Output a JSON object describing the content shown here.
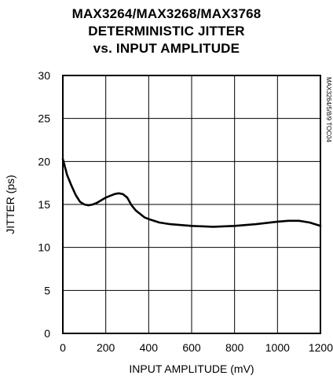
{
  "chart_data": {
    "type": "line",
    "title": [
      "MAX3264/MAX3268/MAX3768",
      "DETERMINISTIC JITTER",
      "vs. INPUT AMPLITUDE"
    ],
    "xlabel": "INPUT AMPLITUDE (mV)",
    "ylabel": "JITTER (ps)",
    "xlim": [
      0,
      1200
    ],
    "ylim": [
      0,
      30
    ],
    "xticks": [
      0,
      200,
      400,
      600,
      800,
      1000,
      1200
    ],
    "yticks": [
      0,
      5,
      10,
      15,
      20,
      25,
      30
    ],
    "grid": true,
    "side_label": "MAX3264/5/8/9 TOC04",
    "series": [
      {
        "x": [
          0,
          20,
          40,
          60,
          80,
          100,
          120,
          140,
          160,
          180,
          200,
          220,
          240,
          260,
          280,
          300,
          320,
          340,
          360,
          380,
          400,
          450,
          500,
          600,
          700,
          800,
          900,
          1000,
          1050,
          1100,
          1150,
          1200
        ],
        "y": [
          20.3,
          18.4,
          17.2,
          16.1,
          15.3,
          15.0,
          14.9,
          15.0,
          15.2,
          15.5,
          15.8,
          16.0,
          16.2,
          16.3,
          16.2,
          15.8,
          14.9,
          14.3,
          13.9,
          13.5,
          13.3,
          12.9,
          12.7,
          12.5,
          12.4,
          12.5,
          12.7,
          13.0,
          13.1,
          13.1,
          12.9,
          12.5
        ]
      }
    ]
  }
}
